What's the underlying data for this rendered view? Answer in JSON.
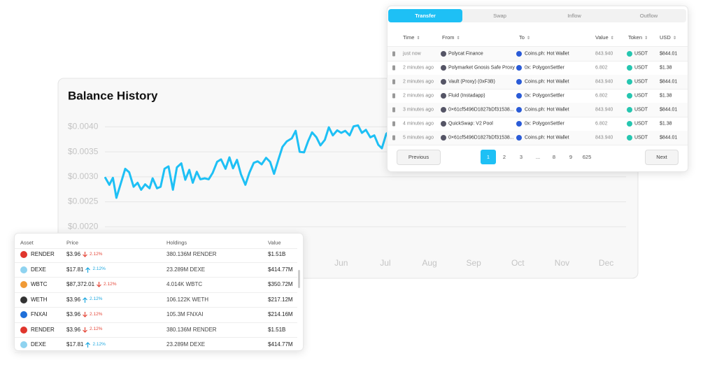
{
  "balance_history": {
    "title": "Balance History",
    "chart": {
      "type": "line",
      "color": "#1ec0f5",
      "grid": true,
      "x": [
        -0.34,
        -0.25,
        -0.17,
        -0.09,
        0,
        0.11,
        0.2,
        0.3,
        0.39,
        0.47,
        0.56,
        0.66,
        0.73,
        0.83,
        0.91,
        1,
        1.09,
        1.19,
        1.28,
        1.38,
        1.47,
        1.56,
        1.64,
        1.73,
        1.81,
        1.91,
        2,
        2.09,
        2.19,
        2.28,
        2.38,
        2.47,
        2.55,
        2.64,
        2.73,
        2.83,
        2.92,
        3.02,
        3.11,
        3.2,
        3.3,
        3.39,
        3.48,
        3.58,
        3.67,
        3.77,
        3.88,
        3.97,
        4.06,
        4.16,
        4.25,
        4.34,
        4.44,
        4.53,
        4.63,
        4.72,
        4.81,
        4.91,
        5,
        5.09,
        5.19,
        5.28,
        5.38,
        5.47,
        5.56,
        5.66,
        5.75,
        5.84,
        5.92,
        6.02,
        6.11
      ],
      "values": [
        0.00298,
        0.00284,
        0.00298,
        0.00258,
        0.00284,
        0.00316,
        0.00309,
        0.0028,
        0.00288,
        0.00274,
        0.00285,
        0.00277,
        0.00297,
        0.00277,
        0.0028,
        0.00316,
        0.00321,
        0.00274,
        0.00319,
        0.00327,
        0.00294,
        0.00314,
        0.00288,
        0.0031,
        0.00295,
        0.00297,
        0.00295,
        0.00308,
        0.0033,
        0.00335,
        0.00316,
        0.00339,
        0.00317,
        0.00334,
        0.00305,
        0.00284,
        0.00308,
        0.00328,
        0.00331,
        0.00325,
        0.00338,
        0.0033,
        0.00306,
        0.00335,
        0.0036,
        0.00371,
        0.00377,
        0.00392,
        0.0035,
        0.00349,
        0.00371,
        0.00389,
        0.00379,
        0.00363,
        0.00374,
        0.00399,
        0.00383,
        0.00393,
        0.00388,
        0.00392,
        0.00383,
        0.00401,
        0.00403,
        0.00388,
        0.00394,
        0.00379,
        0.00383,
        0.00364,
        0.00357,
        0.00386,
        0.00393
      ],
      "xlim": [
        -0.35,
        11.45
      ],
      "ylim": [
        0.0015,
        0.0043
      ],
      "yticks": [
        {
          "value": 0.004,
          "label": "$0.0040"
        },
        {
          "value": 0.0035,
          "label": "$0.0035"
        },
        {
          "value": 0.003,
          "label": "$0.0030"
        },
        {
          "value": 0.0025,
          "label": "$0.0025"
        },
        {
          "value": 0.002,
          "label": "$0.0020"
        }
      ],
      "xticks": [
        {
          "value": 5,
          "label": "Jun"
        },
        {
          "value": 6,
          "label": "Jul"
        },
        {
          "value": 7,
          "label": "Aug"
        },
        {
          "value": 8,
          "label": "Sep"
        },
        {
          "value": 9,
          "label": "Oct"
        },
        {
          "value": 10,
          "label": "Nov"
        },
        {
          "value": 11,
          "label": "Dec"
        }
      ]
    }
  },
  "transfers": {
    "tabs": [
      "Transfer",
      "Swap",
      "Inflow",
      "Outflow"
    ],
    "active_tab": 0,
    "columns": [
      "Time",
      "From",
      "To",
      "Value",
      "Token",
      "USD"
    ],
    "rows": [
      {
        "time": "just now",
        "from": "Polycat Finance",
        "to": "Coins.ph: Hot Wallet",
        "value": "843.940",
        "token": "USDT",
        "usd": "$844.01"
      },
      {
        "time": "2 minutes ago",
        "from": "Polymarket Gnosis Safe Proxy",
        "to": "0x: PolygonSettler",
        "value": "6.802",
        "token": "USDT",
        "usd": "$1.38"
      },
      {
        "time": "2 minutes ago",
        "from": "Vault (Proxy) (0xF3B)",
        "to": "Coins.ph: Hot Wallet",
        "value": "843.940",
        "token": "USDT",
        "usd": "$844.01"
      },
      {
        "time": "2 minutes ago",
        "from": "Fluid (Instadapp)",
        "to": "0x: PolygonSettler",
        "value": "6.802",
        "token": "USDT",
        "usd": "$1.38"
      },
      {
        "time": "3 minutes ago",
        "from": "0×61cf5496D1827bDf31538...",
        "to": "Coins.ph: Hot Wallet",
        "value": "843.940",
        "token": "USDT",
        "usd": "$844.01"
      },
      {
        "time": "4 minutes ago",
        "from": "QuickSwap: V2 Pool",
        "to": "0x: PolygonSettler",
        "value": "6.802",
        "token": "USDT",
        "usd": "$1.38"
      },
      {
        "time": "5 minutes ago",
        "from": "0×61cf5496D1827bDf31538...",
        "to": "Coins.ph: Hot Wallet",
        "value": "843.940",
        "token": "USDT",
        "usd": "$844.01"
      }
    ],
    "pagination": {
      "previous": "Previous",
      "pages": [
        "1",
        "2",
        "3",
        "...",
        "8",
        "9",
        "625"
      ],
      "active_page": 0,
      "next": "Next"
    }
  },
  "assets": {
    "columns": [
      "Asset",
      "Price",
      "Holdings",
      "Value"
    ],
    "rows": [
      {
        "asset": "RENDER",
        "price": "$3.96",
        "change": "2.12%",
        "trend": "down",
        "holdings": "380.136M RENDER",
        "value": "$1.51B",
        "icon_color": "#e0362d"
      },
      {
        "asset": "DEXE",
        "price": "$17.81",
        "change": "2.12%",
        "trend": "up",
        "holdings": "23.289M DEXE",
        "value": "$414.77M",
        "icon_color": "#8fd3f0"
      },
      {
        "asset": "WBTC",
        "price": "$87,372.01",
        "change": "2.12%",
        "trend": "down",
        "holdings": "4.014K WBTC",
        "value": "$350.72M",
        "icon_color": "#f09a36"
      },
      {
        "asset": "WETH",
        "price": "$3.96",
        "change": "2.12%",
        "trend": "up",
        "holdings": "106.122K WETH",
        "value": "$217.12M",
        "icon_color": "#333333"
      },
      {
        "asset": "FNXAI",
        "price": "$3.96",
        "change": "2.12%",
        "trend": "down",
        "holdings": "105.3M FNXAI",
        "value": "$214.16M",
        "icon_color": "#1e6fd9"
      },
      {
        "asset": "RENDER",
        "price": "$3.96",
        "change": "2.12%",
        "trend": "down",
        "holdings": "380.136M RENDER",
        "value": "$1.51B",
        "icon_color": "#e0362d"
      },
      {
        "asset": "DEXE",
        "price": "$17.81",
        "change": "2.12%",
        "trend": "up",
        "holdings": "23.289M DEXE",
        "value": "$414.77M",
        "icon_color": "#8fd3f0"
      }
    ]
  }
}
